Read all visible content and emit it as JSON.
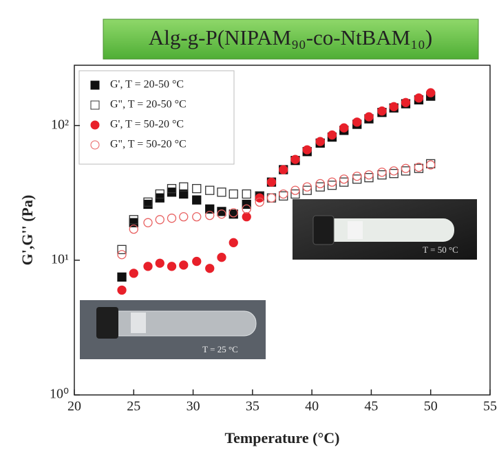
{
  "chart_data": {
    "type": "scatter",
    "title": "Alg-g-P(NIPAM₉₀-co-NtBAM₁₀)",
    "x_label": "Temperature (°C)",
    "y_label": "G',G'' (Pa)",
    "log_y": true,
    "legend": "upper left",
    "xlim": [
      20,
      55
    ],
    "xticks": [
      20,
      25,
      30,
      35,
      40,
      45,
      50,
      55
    ],
    "ylim": [
      1,
      280
    ],
    "yticks": [
      {
        "value": 1,
        "label": "10⁰"
      },
      {
        "value": 10,
        "label": "10¹"
      },
      {
        "value": 100,
        "label": "10²"
      }
    ],
    "x": [
      24,
      25,
      26.2,
      27.2,
      28.2,
      29.2,
      30.3,
      31.4,
      32.4,
      33.4,
      34.5,
      35.6,
      36.6,
      37.6,
      38.6,
      39.6,
      40.7,
      41.7,
      42.7,
      43.8,
      44.8,
      45.9,
      46.9,
      47.9,
      49,
      50
    ],
    "series": [
      {
        "name": "G', T = 20-50 °C",
        "color": "#111111",
        "marker": "square",
        "filled": true,
        "values": [
          7.5,
          19,
          26,
          29,
          32,
          31,
          28,
          24,
          23,
          22,
          26,
          30,
          38,
          47,
          55,
          64,
          74,
          82,
          92,
          102,
          112,
          125,
          135,
          145,
          155,
          165
        ]
      },
      {
        "name": "G\", T = 20-50 °C",
        "color": "#333333",
        "marker": "square",
        "filled": false,
        "values": [
          12,
          20,
          27,
          31,
          34,
          35,
          34,
          33,
          32,
          31,
          31,
          30,
          29,
          30,
          31,
          33,
          35,
          36,
          38,
          40,
          41,
          43,
          44,
          46,
          48,
          52
        ]
      },
      {
        "name": "G', T = 50-20 °C",
        "color": "#e8202a",
        "marker": "circle",
        "filled": true,
        "values": [
          6,
          8,
          9,
          9.5,
          9,
          9.2,
          9.8,
          8.7,
          10.5,
          13.5,
          21,
          29,
          38,
          47,
          56,
          66,
          76,
          85,
          96,
          106,
          116,
          128,
          138,
          148,
          160,
          175
        ]
      },
      {
        "name": "G\", T = 50-20 °C",
        "color": "#e86060",
        "marker": "circle",
        "filled": false,
        "values": [
          11,
          17,
          19,
          20,
          20.5,
          21,
          21,
          21.5,
          22,
          22.5,
          24,
          27,
          29,
          31,
          33,
          35,
          37,
          38,
          40,
          42,
          43,
          45,
          46,
          48,
          49,
          51
        ]
      }
    ],
    "annotations": [
      "T = 50 °C",
      "T = 25 °C"
    ]
  }
}
